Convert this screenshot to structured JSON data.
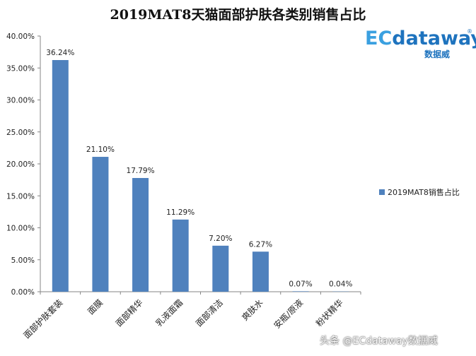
{
  "chart_data": {
    "type": "bar",
    "title": "2019MAT8天猫面部护肤各类别销售占比",
    "categories": [
      "面部护肤套装",
      "面膜",
      "面部精华",
      "乳液面霜",
      "面部清洁",
      "爽肤水",
      "安瓶/原液",
      "粉状精华"
    ],
    "series": [
      {
        "name": "2019MAT8销售占比",
        "values": [
          36.24,
          21.1,
          17.79,
          11.29,
          7.2,
          6.27,
          0.07,
          0.04
        ],
        "labels": [
          "36.24%",
          "21.10%",
          "17.79%",
          "11.29%",
          "7.20%",
          "6.27%",
          "0.07%",
          "0.04%"
        ]
      }
    ],
    "yticks": [
      "0.00%",
      "5.00%",
      "10.00%",
      "15.00%",
      "20.00%",
      "25.00%",
      "30.00%",
      "35.00%",
      "40.00%"
    ],
    "ylim": [
      0,
      40
    ],
    "xlabel": "",
    "ylabel": "",
    "legend_position": "right",
    "bar_color": "#4f81bd",
    "grid": false
  },
  "logo": {
    "main_ec": "EC",
    "main_rest": "dataway",
    "registered": "®",
    "sub": "数据威"
  },
  "watermark": "头条 @ECdataway数据威"
}
